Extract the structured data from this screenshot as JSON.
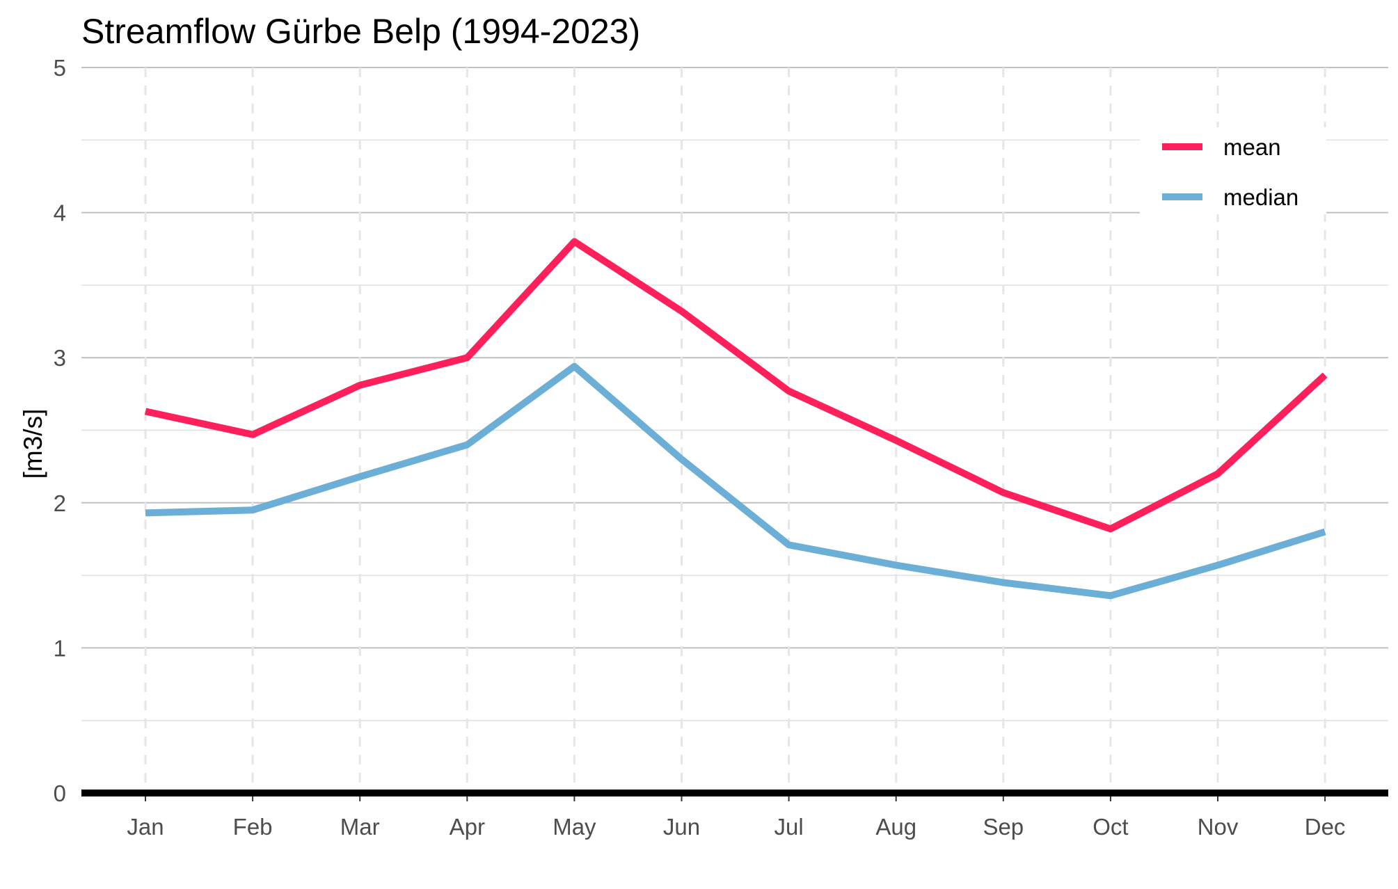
{
  "chart_data": {
    "type": "line",
    "title": "Streamflow Gürbe Belp (1994-2023)",
    "xlabel": "",
    "ylabel": "[m3/s]",
    "categories": [
      "Jan",
      "Feb",
      "Mar",
      "Apr",
      "May",
      "Jun",
      "Jul",
      "Aug",
      "Sep",
      "Oct",
      "Nov",
      "Dec"
    ],
    "ylim": [
      0,
      5
    ],
    "yticks": [
      "0",
      "1",
      "2",
      "3",
      "4",
      "5"
    ],
    "grid": true,
    "legend_position": "top-right",
    "series": [
      {
        "name": "mean",
        "color": "#ff1f5b",
        "values": [
          2.63,
          2.47,
          2.81,
          3.0,
          3.8,
          3.32,
          2.77,
          2.43,
          2.07,
          1.82,
          2.2,
          2.88
        ]
      },
      {
        "name": "median",
        "color": "#6baed6",
        "values": [
          1.93,
          1.95,
          2.18,
          2.4,
          2.94,
          2.3,
          1.71,
          1.57,
          1.45,
          1.36,
          1.57,
          1.8
        ]
      }
    ]
  }
}
